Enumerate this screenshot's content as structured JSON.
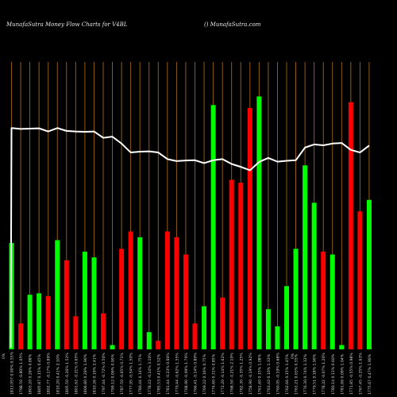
{
  "header": {
    "left": "MunafaSutra  Money Flow  Charts for V4BL",
    "right": "() MunafaSutra.com"
  },
  "chart_data": {
    "type": "bar",
    "title": "MunafaSutra  Money Flow  Charts for V4BL",
    "background": "#000000",
    "colors": {
      "up": "#00ff00",
      "down": "#ff0000",
      "grid": "#a06418",
      "line": "#ffffff"
    },
    "grid": true,
    "ylim": [
      0,
      100
    ],
    "categories": [
      "1813.057 0.00% 0.55%",
      "1798.50 -0.80% 1.05%",
      "1803.20 0.26% 0.88%",
      "1805.87 0.15% 0.45%",
      "1802.77 -0.17% 0.89%",
      "1810.20 0.41% 2.10%",
      "1805.50 -0.26% 1.52%",
      "1801.62 -0.21% 0.65%",
      "1806.80 0.29% 1.90%",
      "1810.26 0.19% 2.41%",
      "1797.44 -0.72% 0.50%",
      "1799.12 0.09% 0.90%",
      "1787.50 -0.65% 0.71%",
      "1777.95 -0.54% 1.50%",
      "1780.44 0.14% 1.75%",
      "1778.22 -0.14% 3.10%",
      "1785.53 0.41% 0.52%",
      "1781.44 -0.23% 0.60%",
      "1770.44 -0.62% 1.55%",
      "1768.90 -0.09% 1.70%",
      "1766.41 -0.14% 0.80%",
      "1769.22 0.16% 0.75%",
      "1774.60 0.31% 0.85%",
      "1772.20 -0.14% 1.62%",
      "1768.50 -0.21% 2.10%",
      "1762.30 -0.35% 1.25%",
      "1758.90 -0.19% 0.92%",
      "1761.60 0.15% 1.08%",
      "1763.42 0.10% 1.33%",
      "1760.05 -0.19% 0.68%",
      "1762.66 0.15% 1.45%",
      "1763.21 0.03% 0.55%",
      "1776.30 0.74% 1.12%",
      "1779.51 0.18% 1.90%",
      "1778.22 -0.07% 1.20%",
      "1780.14 0.11% 0.60%",
      "1781.66 0.09% 1.04%",
      "1771.85 -0.55% 0.98%",
      "1767.45 -0.25% 1.63%",
      "1775.67 0.47% 1.90%"
    ],
    "values": [
      37,
      9,
      19,
      19.5,
      18.5,
      38,
      31,
      11.5,
      34,
      32,
      12.5,
      1.5,
      35,
      41,
      39,
      6,
      3,
      41,
      39,
      33,
      9,
      15,
      85,
      18,
      59,
      58,
      84,
      88,
      14,
      8,
      22,
      35,
      64,
      51,
      34,
      33,
      1.5,
      86,
      48,
      52
    ],
    "direction": [
      "up",
      "down",
      "up",
      "up",
      "down",
      "up",
      "down",
      "down",
      "up",
      "up",
      "down",
      "up",
      "down",
      "down",
      "up",
      "up",
      "down",
      "down",
      "down",
      "down",
      "down",
      "up",
      "up",
      "down",
      "down",
      "down",
      "down",
      "up",
      "up",
      "up",
      "up",
      "up",
      "up",
      "up",
      "down",
      "up",
      "up",
      "down",
      "down",
      "up"
    ],
    "line": [
      77,
      76.7,
      76.8,
      76.9,
      75.8,
      77,
      76,
      75.8,
      75.7,
      75.8,
      73.6,
      74,
      71.6,
      68.5,
      68.8,
      68.9,
      68.5,
      66.2,
      65.5,
      65.7,
      65.8,
      64.8,
      65.8,
      66.2,
      64.5,
      63.5,
      62.3,
      65.2,
      66.6,
      65.3,
      65.6,
      65.8,
      70.2,
      71.3,
      71,
      71.6,
      71.8,
      69.4,
      68.5,
      70.9
    ],
    "label_end": "1775.67 0.47% 1.90%"
  }
}
